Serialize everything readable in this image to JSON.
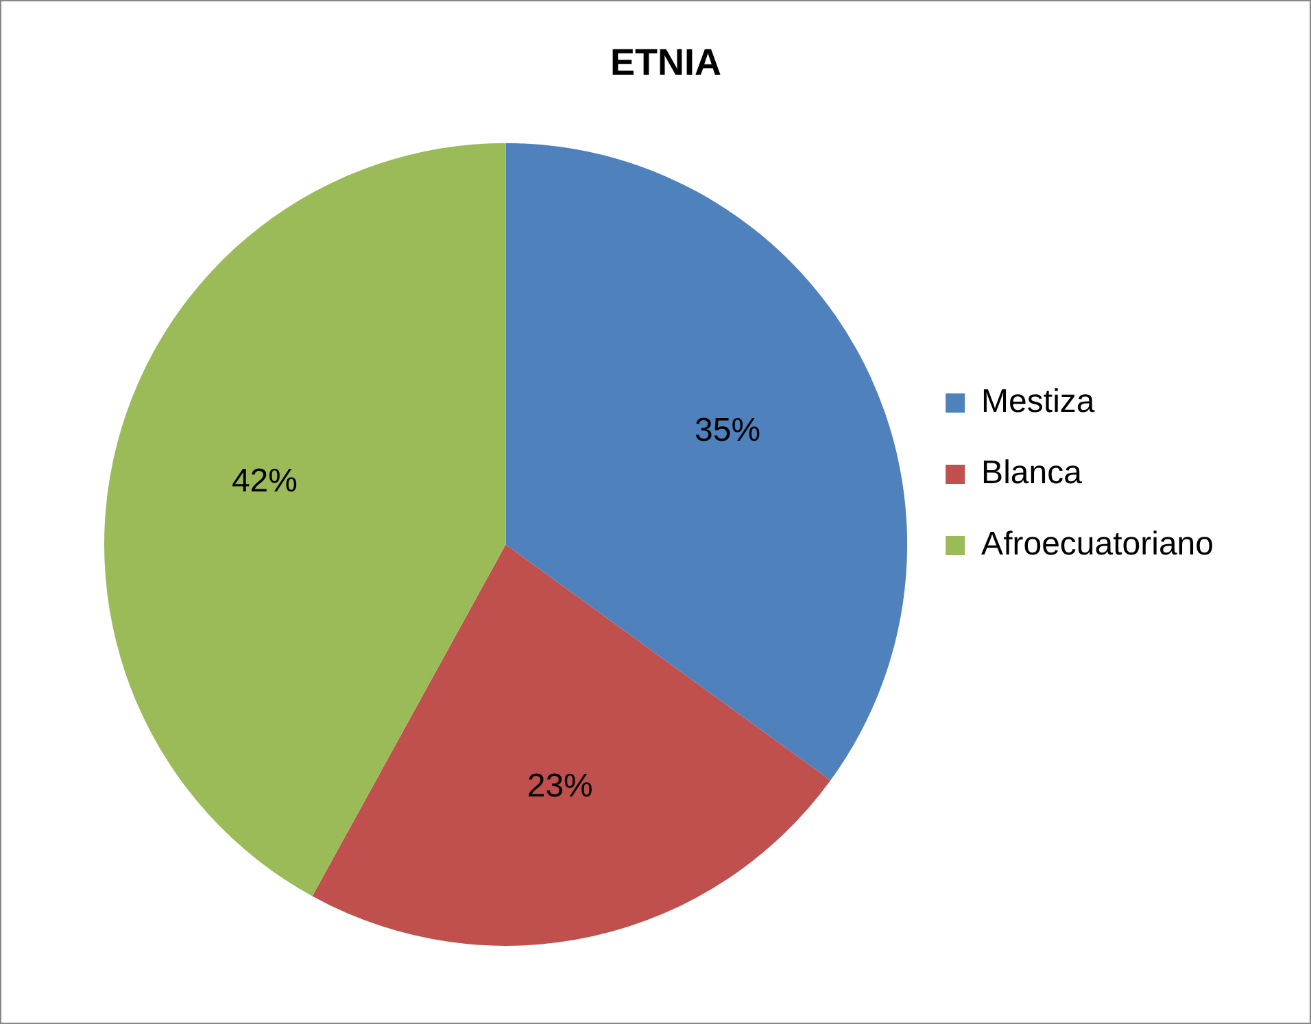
{
  "chart_data": {
    "type": "pie",
    "title": "ETNIA",
    "categories": [
      "Mestiza",
      "Blanca",
      "Afroecuatoriano"
    ],
    "values": [
      35,
      23,
      42
    ],
    "colors": [
      "#4f81bd",
      "#c0504d",
      "#9bbb59"
    ],
    "value_labels": [
      "35%",
      "23%",
      "42%"
    ],
    "legend": "right"
  }
}
